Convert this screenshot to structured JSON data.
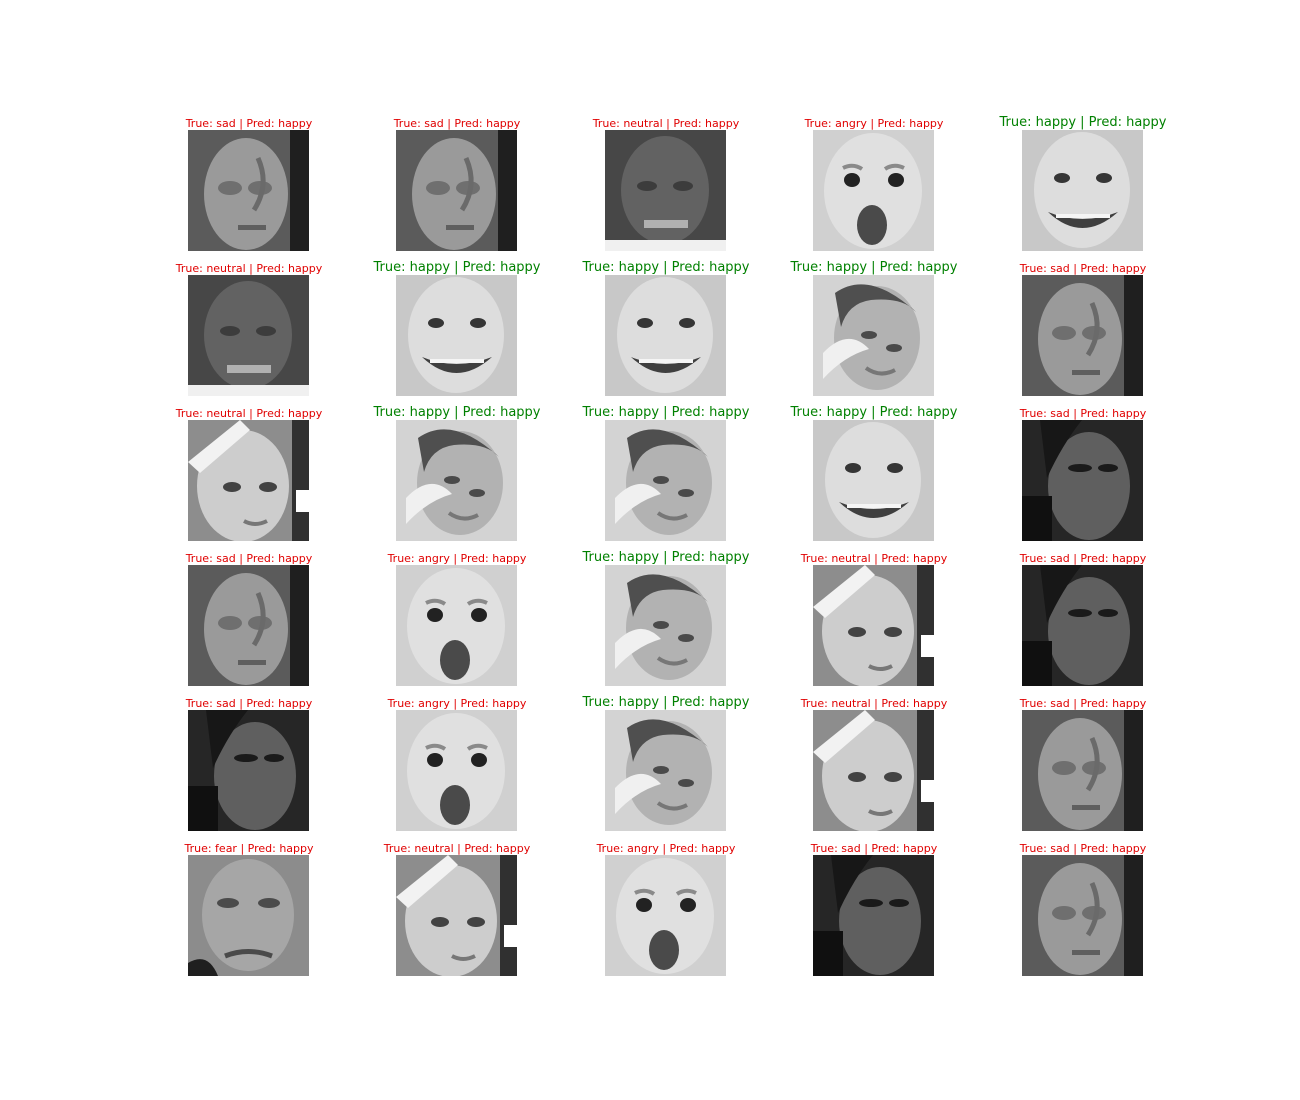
{
  "figure": {
    "colors": {
      "correct": "#008000",
      "incorrect": "#e00000"
    },
    "icons": {
      "face_tile": "grayscale-face-image"
    },
    "cells": [
      {
        "label": "True: sad | Pred: happy",
        "true_label": "sad",
        "pred_label": "happy",
        "face": "older-man"
      },
      {
        "label": "True: sad | Pred: happy",
        "true_label": "sad",
        "pred_label": "happy",
        "face": "older-man"
      },
      {
        "label": "True: neutral | Pred: happy",
        "true_label": "neutral",
        "pred_label": "happy",
        "face": "dark-man"
      },
      {
        "label": "True: angry | Pred: happy",
        "true_label": "angry",
        "pred_label": "happy",
        "face": "baby-shout"
      },
      {
        "label": "True: happy | Pred: happy",
        "true_label": "happy",
        "pred_label": "happy",
        "face": "baby-laugh"
      },
      {
        "label": "True: neutral | Pred: happy",
        "true_label": "neutral",
        "pred_label": "happy",
        "face": "dark-man"
      },
      {
        "label": "True: happy | Pred: happy",
        "true_label": "happy",
        "pred_label": "happy",
        "face": "baby-laugh"
      },
      {
        "label": "True: happy | Pred: happy",
        "true_label": "happy",
        "pred_label": "happy",
        "face": "baby-laugh"
      },
      {
        "label": "True: happy | Pred: happy",
        "true_label": "happy",
        "pred_label": "happy",
        "face": "girl-tilt"
      },
      {
        "label": "True: sad | Pred: happy",
        "true_label": "sad",
        "pred_label": "happy",
        "face": "older-man"
      },
      {
        "label": "True: neutral | Pred: happy",
        "true_label": "neutral",
        "pred_label": "happy",
        "face": "girl-side"
      },
      {
        "label": "True: happy | Pred: happy",
        "true_label": "happy",
        "pred_label": "happy",
        "face": "girl-tilt"
      },
      {
        "label": "True: happy | Pred: happy",
        "true_label": "happy",
        "pred_label": "happy",
        "face": "girl-tilt"
      },
      {
        "label": "True: happy | Pred: happy",
        "true_label": "happy",
        "pred_label": "happy",
        "face": "baby-laugh"
      },
      {
        "label": "True: sad | Pred: happy",
        "true_label": "sad",
        "pred_label": "happy",
        "face": "shadow-face"
      },
      {
        "label": "True: sad | Pred: happy",
        "true_label": "sad",
        "pred_label": "happy",
        "face": "older-man"
      },
      {
        "label": "True: angry | Pred: happy",
        "true_label": "angry",
        "pred_label": "happy",
        "face": "baby-shout"
      },
      {
        "label": "True: happy | Pred: happy",
        "true_label": "happy",
        "pred_label": "happy",
        "face": "girl-tilt"
      },
      {
        "label": "True: neutral | Pred: happy",
        "true_label": "neutral",
        "pred_label": "happy",
        "face": "girl-side"
      },
      {
        "label": "True: sad | Pred: happy",
        "true_label": "sad",
        "pred_label": "happy",
        "face": "shadow-face"
      },
      {
        "label": "True: sad | Pred: happy",
        "true_label": "sad",
        "pred_label": "happy",
        "face": "shadow-face"
      },
      {
        "label": "True: angry | Pred: happy",
        "true_label": "angry",
        "pred_label": "happy",
        "face": "baby-shout"
      },
      {
        "label": "True: happy | Pred: happy",
        "true_label": "happy",
        "pred_label": "happy",
        "face": "girl-tilt"
      },
      {
        "label": "True: neutral | Pred: happy",
        "true_label": "neutral",
        "pred_label": "happy",
        "face": "girl-side"
      },
      {
        "label": "True: sad | Pred: happy",
        "true_label": "sad",
        "pred_label": "happy",
        "face": "older-man"
      },
      {
        "label": "True: fear | Pred: happy",
        "true_label": "fear",
        "pred_label": "happy",
        "face": "fear-face"
      },
      {
        "label": "True: neutral | Pred: happy",
        "true_label": "neutral",
        "pred_label": "happy",
        "face": "girl-side"
      },
      {
        "label": "True: angry | Pred: happy",
        "true_label": "angry",
        "pred_label": "happy",
        "face": "baby-shout"
      },
      {
        "label": "True: sad | Pred: happy",
        "true_label": "sad",
        "pred_label": "happy",
        "face": "shadow-face"
      },
      {
        "label": "True: sad | Pred: happy",
        "true_label": "sad",
        "pred_label": "happy",
        "face": "older-man"
      }
    ]
  }
}
